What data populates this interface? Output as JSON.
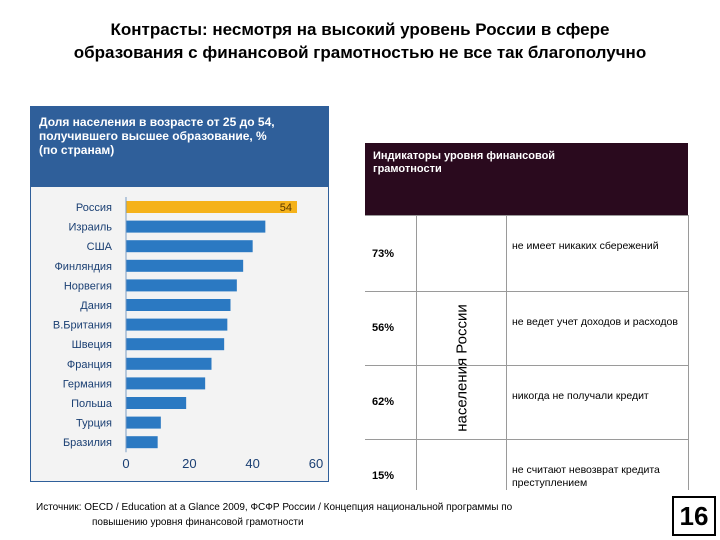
{
  "title": {
    "line1": "Контрасты: несмотря на высокий уровень России в сфере",
    "line2": "образования с финансовой грамотностью не все так благополучно"
  },
  "chart_data": {
    "type": "bar",
    "orientation": "horizontal",
    "title_lines": [
      "Доля населения в возрасте от 25 до 54,",
      "получившего высшее образование, %",
      "(по странам)"
    ],
    "categories": [
      "Россия",
      "Израиль",
      "США",
      "Финляндия",
      "Норвегия",
      "Дания",
      "В.Британия",
      "Швеция",
      "Франция",
      "Германия",
      "Польша",
      "Турция",
      "Бразилия"
    ],
    "values": [
      54,
      44,
      40,
      37,
      35,
      33,
      32,
      31,
      27,
      25,
      19,
      11,
      10
    ],
    "highlight": "Россия",
    "highlight_label": "54",
    "xlim": [
      0,
      60
    ],
    "xticks": [
      "0",
      "20",
      "40",
      "60"
    ],
    "colors": {
      "bar": "#2b79c2",
      "highlight": "#f5b21a",
      "header": "#2f5f9a"
    }
  },
  "indicators": {
    "header_lines": [
      "Индикаторы уровня финансовой",
      "грамотности"
    ],
    "side_label": "населения России",
    "rows": [
      {
        "pct": "73%",
        "desc": "не имеет никаких сбережений"
      },
      {
        "pct": "56%",
        "desc": "не ведет учет доходов и расходов"
      },
      {
        "pct": "62%",
        "desc": "никогда не получали кредит"
      },
      {
        "pct": "15%",
        "desc": "не считают невозврат кредита преступлением"
      }
    ],
    "colors": {
      "header": "#2a0a1e"
    }
  },
  "source": {
    "line1": "Источник:  OECD / Education at a Glance 2009, ФСФР России / Концепция национальной программы по",
    "line2": "повышению уровня финансовой грамотности"
  },
  "page_number": "16"
}
